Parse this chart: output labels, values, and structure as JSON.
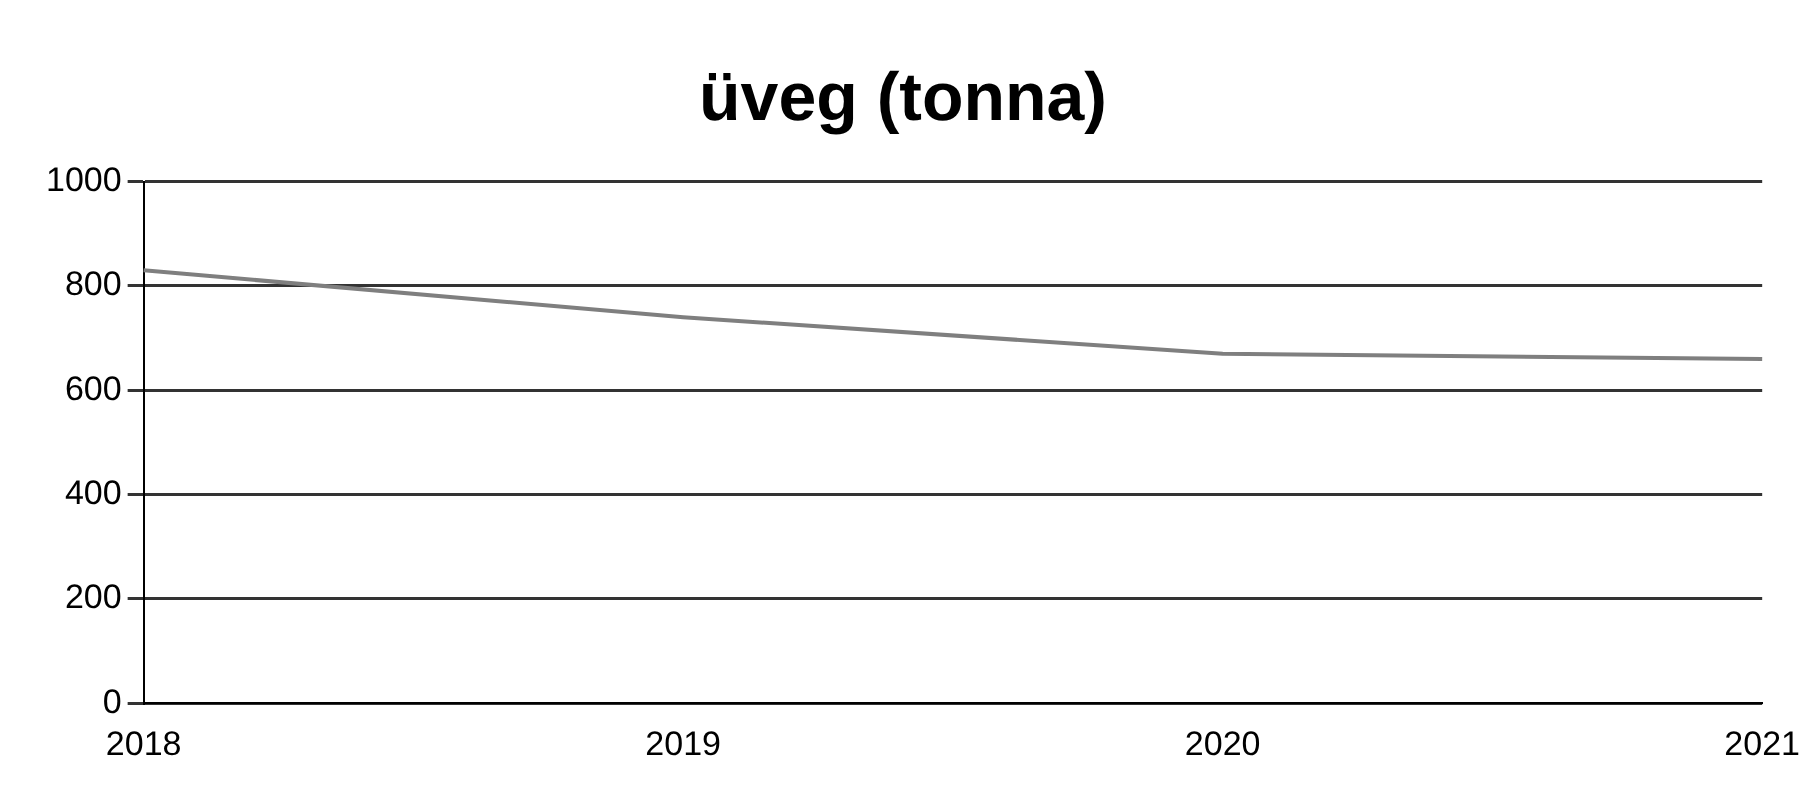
{
  "chart_data": {
    "type": "line",
    "title": "üveg (tonna)",
    "categories": [
      "2018",
      "2019",
      "2020",
      "2021"
    ],
    "series": [
      {
        "color": "#7f7f7f",
        "values": [
          830,
          740,
          670,
          660
        ]
      }
    ],
    "ylim": [
      0,
      1000
    ],
    "yticks": [
      0,
      200,
      400,
      600,
      800,
      1000
    ],
    "grid": "y",
    "legend": false,
    "marker": "none",
    "line_style": "solid"
  }
}
